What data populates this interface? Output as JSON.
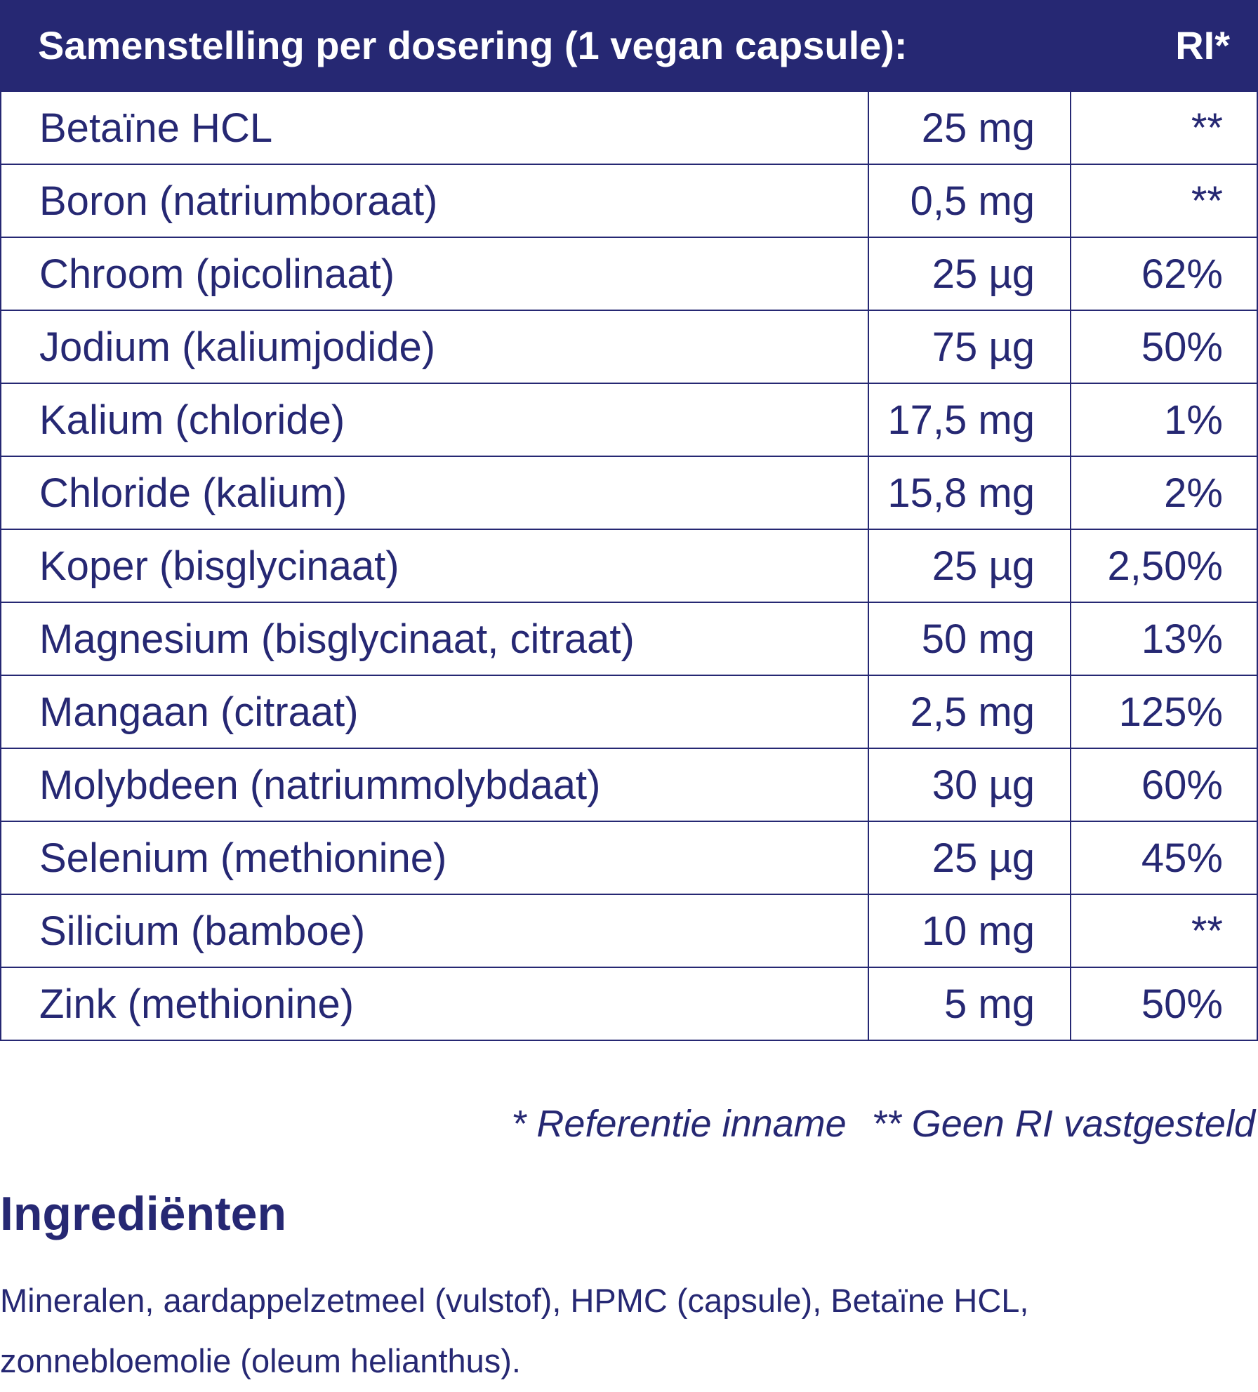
{
  "header": {
    "title": "Samenstelling per dosering (1 vegan capsule):",
    "ri": "RI*"
  },
  "table": {
    "rows": [
      [
        "Betaïne HCL",
        "25 mg",
        "**"
      ],
      [
        "Boron (natriumboraat)",
        "0,5 mg",
        "**"
      ],
      [
        "Chroom (picolinaat)",
        "25 µg",
        "62%"
      ],
      [
        "Jodium (kaliumjodide)",
        "75 µg",
        "50%"
      ],
      [
        "Kalium (chloride)",
        "17,5 mg",
        "1%"
      ],
      [
        "Chloride (kalium)",
        "15,8 mg",
        "2%"
      ],
      [
        "Koper (bisglycinaat)",
        "25 µg",
        "2,50%"
      ],
      [
        "Magnesium (bisglycinaat, citraat)",
        "50 mg",
        "13%"
      ],
      [
        "Mangaan (citraat)",
        "2,5 mg",
        "125%"
      ],
      [
        "Molybdeen (natriummolybdaat)",
        "30 µg",
        "60%"
      ],
      [
        "Selenium (methionine)",
        "25 µg",
        "45%"
      ],
      [
        "Silicium (bamboe)",
        "10 mg",
        "**"
      ],
      [
        "Zink (methionine)",
        "5 mg",
        "50%"
      ]
    ]
  },
  "footnote": {
    "ri": "* Referentie inname",
    "none": "** Geen RI vastgesteld"
  },
  "ingredients": {
    "title": "Ingrediënten",
    "text": "Mineralen, aardappelzetmeel (vulstof), HPMC (capsule), Betaïne HCL, zonnebloemolie (oleum helianthus)."
  }
}
